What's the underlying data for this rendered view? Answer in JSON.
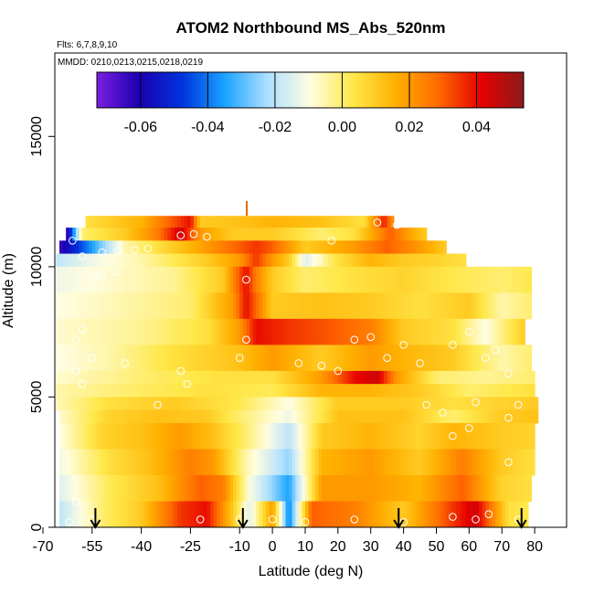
{
  "chart_data": {
    "type": "heatmap",
    "title": "ATOM2 Northbound MS_Abs_520nm",
    "subtitle_flights": "Flts: 6,7,8,9,10",
    "subtitle_dates": "MMDD: 0210,0213,0215,0218,0219",
    "xlabel": "Latitude (deg N)",
    "ylabel": "Altitude (m)",
    "xlim": [
      -70,
      85
    ],
    "ylim": [
      0,
      17500
    ],
    "x_ticks": [
      -70,
      -55,
      -40,
      -25,
      -10,
      0,
      10,
      20,
      30,
      40,
      50,
      60,
      70,
      80
    ],
    "x_tick_labels": [
      "-70",
      "-55",
      "-40",
      "-25",
      "-10",
      "0",
      "10",
      "20",
      "30",
      "40",
      "50",
      "60",
      "70",
      "80"
    ],
    "y_ticks": [
      0,
      5000,
      10000,
      15000
    ],
    "y_tick_labels": [
      "0",
      "5000",
      "10000",
      "15000"
    ],
    "colorbar": {
      "range": [
        -0.073,
        0.054
      ],
      "ticks": [
        -0.06,
        -0.04,
        -0.02,
        0.0,
        0.02,
        0.04
      ],
      "tick_labels": [
        "-0.06",
        "-0.04",
        "-0.02",
        "0.00",
        "0.02",
        "0.04"
      ],
      "colors": [
        "#7a1fe0",
        "#1a00b0",
        "#0033dd",
        "#1aa3ff",
        "#aee0ff",
        "#fffde0",
        "#ffe84a",
        "#ffb000",
        "#ff6a00",
        "#e60000",
        "#8c1a1a"
      ]
    },
    "profile_markers_lat": [
      -54,
      -9,
      38.5,
      76
    ],
    "altitude_bins": [
      {
        "bottom": 11500,
        "top": 11950,
        "x_start": -57,
        "x_end": 37,
        "values": [
          [
            -57,
            0.005
          ],
          [
            -40,
            0.015
          ],
          [
            -25,
            0.04
          ],
          [
            -22,
            0.01
          ],
          [
            -10,
            0.012
          ],
          [
            0,
            0.015
          ],
          [
            15,
            0.012
          ],
          [
            28,
            0.005
          ],
          [
            34,
            0.038
          ],
          [
            37,
            0.02
          ]
        ]
      },
      {
        "bottom": 11000,
        "top": 11500,
        "x_start": -63,
        "x_end": 47,
        "values": [
          [
            -63,
            -0.07
          ],
          [
            -58,
            0.0
          ],
          [
            -45,
            0.01
          ],
          [
            -35,
            0.025
          ],
          [
            -28,
            0.045
          ],
          [
            -22,
            0.02
          ],
          [
            -12,
            0.01
          ],
          [
            0,
            0.01
          ],
          [
            15,
            0.0
          ],
          [
            25,
            0.005
          ],
          [
            36,
            0.03
          ],
          [
            42,
            0.018
          ],
          [
            47,
            0.01
          ]
        ]
      },
      {
        "bottom": 10500,
        "top": 11000,
        "x_start": -65,
        "x_end": 53,
        "values": [
          [
            -65,
            -0.065
          ],
          [
            -55,
            -0.035
          ],
          [
            -45,
            -0.005
          ],
          [
            -30,
            0.01
          ],
          [
            -15,
            0.025
          ],
          [
            -5,
            0.035
          ],
          [
            0,
            0.03
          ],
          [
            10,
            0.01
          ],
          [
            25,
            0.02
          ],
          [
            35,
            0.03
          ],
          [
            45,
            0.02
          ],
          [
            53,
            0.01
          ]
        ]
      },
      {
        "bottom": 10000,
        "top": 10500,
        "x_start": -66,
        "x_end": 59,
        "values": [
          [
            -66,
            -0.02
          ],
          [
            -55,
            -0.012
          ],
          [
            -40,
            -0.005
          ],
          [
            -20,
            0.01
          ],
          [
            -10,
            0.02
          ],
          [
            -5,
            0.035
          ],
          [
            0,
            0.02
          ],
          [
            5,
            0.01
          ],
          [
            10,
            -0.015
          ],
          [
            20,
            0.005
          ],
          [
            30,
            0.015
          ],
          [
            40,
            0.01
          ],
          [
            50,
            0.008
          ],
          [
            59,
            0.005
          ]
        ]
      },
      {
        "bottom": 9000,
        "top": 10000,
        "x_start": -66,
        "x_end": 79,
        "values": [
          [
            -66,
            -0.012
          ],
          [
            -50,
            -0.008
          ],
          [
            -30,
            -0.003
          ],
          [
            -15,
            0.01
          ],
          [
            -8,
            0.04
          ],
          [
            -5,
            0.025
          ],
          [
            0,
            0.01
          ],
          [
            10,
            0.0
          ],
          [
            25,
            0.005
          ],
          [
            40,
            0.008
          ],
          [
            55,
            0.003
          ],
          [
            70,
            0.0
          ],
          [
            79,
            0.003
          ]
        ]
      },
      {
        "bottom": 8000,
        "top": 9000,
        "x_start": -66,
        "x_end": 79,
        "values": [
          [
            -66,
            -0.01
          ],
          [
            -45,
            -0.005
          ],
          [
            -25,
            0.0
          ],
          [
            -12,
            0.02
          ],
          [
            -8,
            0.04
          ],
          [
            0,
            0.01
          ],
          [
            15,
            0.012
          ],
          [
            30,
            0.01
          ],
          [
            45,
            0.005
          ],
          [
            60,
            0.01
          ],
          [
            70,
            -0.005
          ],
          [
            79,
            0.0
          ]
        ]
      },
      {
        "bottom": 7000,
        "top": 8000,
        "x_start": -66,
        "x_end": 77,
        "values": [
          [
            -66,
            -0.008
          ],
          [
            -40,
            -0.003
          ],
          [
            -20,
            0.005
          ],
          [
            -10,
            0.02
          ],
          [
            -5,
            0.04
          ],
          [
            5,
            0.035
          ],
          [
            20,
            0.03
          ],
          [
            30,
            0.025
          ],
          [
            40,
            0.01
          ],
          [
            55,
            0.005
          ],
          [
            65,
            -0.01
          ],
          [
            77,
            0.01
          ]
        ]
      },
      {
        "bottom": 6000,
        "top": 7000,
        "x_start": -66,
        "x_end": 79,
        "values": [
          [
            -66,
            -0.01
          ],
          [
            -50,
            -0.005
          ],
          [
            -30,
            0.005
          ],
          [
            -10,
            0.012
          ],
          [
            0,
            0.02
          ],
          [
            15,
            0.01
          ],
          [
            30,
            0.02
          ],
          [
            40,
            0.015
          ],
          [
            55,
            0.01
          ],
          [
            70,
            -0.005
          ],
          [
            79,
            0.0
          ]
        ]
      },
      {
        "bottom": 5500,
        "top": 6000,
        "x_start": -66,
        "x_end": 80,
        "values": [
          [
            -66,
            -0.008
          ],
          [
            -40,
            0.0
          ],
          [
            -15,
            0.005
          ],
          [
            0,
            0.005
          ],
          [
            15,
            0.02
          ],
          [
            25,
            0.04
          ],
          [
            32,
            0.045
          ],
          [
            38,
            0.02
          ],
          [
            50,
            0.0
          ],
          [
            65,
            -0.003
          ],
          [
            80,
            0.0
          ]
        ]
      },
      {
        "bottom": 5000,
        "top": 5500,
        "x_start": -66,
        "x_end": 80,
        "values": [
          [
            -66,
            -0.005
          ],
          [
            -45,
            0.0
          ],
          [
            -20,
            0.005
          ],
          [
            0,
            0.002
          ],
          [
            15,
            0.015
          ],
          [
            30,
            0.015
          ],
          [
            45,
            0.01
          ],
          [
            60,
            0.0
          ],
          [
            80,
            0.005
          ]
        ]
      },
      {
        "bottom": 4500,
        "top": 5000,
        "x_start": -66,
        "x_end": 81,
        "values": [
          [
            -66,
            -0.006
          ],
          [
            -50,
            0.005
          ],
          [
            -30,
            0.01
          ],
          [
            -10,
            0.003
          ],
          [
            5,
            -0.01
          ],
          [
            20,
            0.01
          ],
          [
            40,
            0.01
          ],
          [
            55,
            0.005
          ],
          [
            70,
            0.008
          ],
          [
            81,
            0.01
          ]
        ]
      },
      {
        "bottom": 4000,
        "top": 4500,
        "x_start": -65,
        "x_end": 81,
        "values": [
          [
            -65,
            -0.008
          ],
          [
            -50,
            0.008
          ],
          [
            -35,
            0.012
          ],
          [
            -20,
            0.01
          ],
          [
            -10,
            0.0
          ],
          [
            5,
            -0.012
          ],
          [
            20,
            0.012
          ],
          [
            40,
            0.012
          ],
          [
            55,
            0.0
          ],
          [
            70,
            0.01
          ],
          [
            81,
            0.012
          ]
        ]
      },
      {
        "bottom": 3000,
        "top": 4000,
        "x_start": -65,
        "x_end": 80,
        "values": [
          [
            -65,
            -0.01
          ],
          [
            -52,
            0.008
          ],
          [
            -40,
            0.012
          ],
          [
            -28,
            0.02
          ],
          [
            -18,
            0.012
          ],
          [
            -8,
            0.0
          ],
          [
            5,
            -0.02
          ],
          [
            15,
            0.01
          ],
          [
            30,
            0.015
          ],
          [
            45,
            0.008
          ],
          [
            55,
            0.015
          ],
          [
            70,
            0.01
          ],
          [
            80,
            0.008
          ]
        ]
      },
      {
        "bottom": 2000,
        "top": 3000,
        "x_start": -65,
        "x_end": 80,
        "values": [
          [
            -65,
            -0.012
          ],
          [
            -50,
            0.005
          ],
          [
            -38,
            0.012
          ],
          [
            -25,
            0.025
          ],
          [
            -18,
            0.02
          ],
          [
            -8,
            -0.005
          ],
          [
            5,
            -0.025
          ],
          [
            15,
            0.015
          ],
          [
            30,
            0.02
          ],
          [
            45,
            0.01
          ],
          [
            58,
            0.025
          ],
          [
            70,
            0.01
          ],
          [
            80,
            0.005
          ]
        ]
      },
      {
        "bottom": 1000,
        "top": 2000,
        "x_start": -65,
        "x_end": 79,
        "values": [
          [
            -65,
            -0.015
          ],
          [
            -50,
            0.002
          ],
          [
            -35,
            0.012
          ],
          [
            -22,
            0.03
          ],
          [
            -15,
            0.025
          ],
          [
            -7,
            -0.01
          ],
          [
            5,
            -0.035
          ],
          [
            15,
            0.02
          ],
          [
            30,
            0.02
          ],
          [
            45,
            0.015
          ],
          [
            58,
            0.03
          ],
          [
            70,
            0.008
          ],
          [
            79,
            0.005
          ]
        ]
      },
      {
        "bottom": 0,
        "top": 1000,
        "x_start": -65,
        "x_end": 78,
        "values": [
          [
            -65,
            -0.02
          ],
          [
            -52,
            0.0
          ],
          [
            -40,
            0.01
          ],
          [
            -28,
            0.035
          ],
          [
            -20,
            0.04
          ],
          [
            -12,
            0.01
          ],
          [
            -7,
            -0.015
          ],
          [
            0,
            0.02
          ],
          [
            5,
            -0.04
          ],
          [
            12,
            0.03
          ],
          [
            25,
            0.025
          ],
          [
            40,
            0.01
          ],
          [
            55,
            0.035
          ],
          [
            62,
            0.045
          ],
          [
            72,
            0.005
          ],
          [
            78,
            0.003
          ]
        ]
      }
    ],
    "sample_points": [
      [
        -61,
        11000
      ],
      [
        -58,
        10400
      ],
      [
        -52,
        10550
      ],
      [
        -47,
        10600
      ],
      [
        -42,
        10650
      ],
      [
        -38,
        10700
      ],
      [
        -54,
        9600
      ],
      [
        -52,
        9700
      ],
      [
        -48,
        9800
      ],
      [
        -28,
        11200
      ],
      [
        -24,
        11250
      ],
      [
        -20,
        11150
      ],
      [
        -8,
        9500
      ],
      [
        14,
        10300
      ],
      [
        18,
        11000
      ],
      [
        32,
        11700
      ],
      [
        38,
        11600
      ],
      [
        42,
        11700
      ],
      [
        -60,
        7200
      ],
      [
        -58,
        7600
      ],
      [
        -55,
        6500
      ],
      [
        -60,
        6000
      ],
      [
        -58,
        5500
      ],
      [
        -45,
        6300
      ],
      [
        -28,
        6000
      ],
      [
        -26,
        5500
      ],
      [
        -35,
        4700
      ],
      [
        -8,
        7200
      ],
      [
        -10,
        6500
      ],
      [
        8,
        6300
      ],
      [
        15,
        6200
      ],
      [
        20,
        6000
      ],
      [
        25,
        7200
      ],
      [
        30,
        7300
      ],
      [
        35,
        6500
      ],
      [
        40,
        7000
      ],
      [
        45,
        6300
      ],
      [
        55,
        7000
      ],
      [
        60,
        7500
      ],
      [
        65,
        6500
      ],
      [
        68,
        6800
      ],
      [
        72,
        5900
      ],
      [
        75,
        4700
      ],
      [
        72,
        4200
      ],
      [
        62,
        4800
      ],
      [
        60,
        3800
      ],
      [
        47,
        4700
      ],
      [
        52,
        4400
      ],
      [
        55,
        3500
      ],
      [
        72,
        2500
      ],
      [
        -60,
        1000
      ],
      [
        -62,
        200
      ],
      [
        -55,
        300
      ],
      [
        -22,
        300
      ],
      [
        -10,
        300
      ],
      [
        0,
        300
      ],
      [
        10,
        200
      ],
      [
        25,
        300
      ],
      [
        40,
        200
      ],
      [
        55,
        400
      ],
      [
        62,
        300
      ],
      [
        66,
        500
      ],
      [
        75,
        300
      ]
    ]
  }
}
